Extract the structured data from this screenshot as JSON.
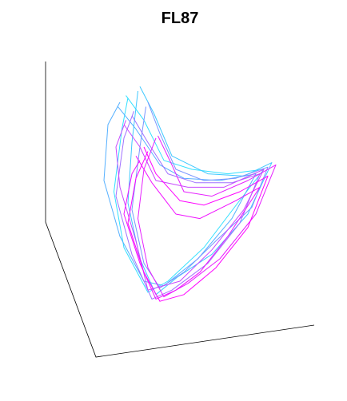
{
  "chart_data": {
    "type": "line",
    "title": "FL87",
    "xlim": [
      0,
      100
    ],
    "ylim": [
      0,
      100
    ],
    "series": [
      {
        "color": "#33e0ff",
        "x": [
          19,
          28,
          38,
          52,
          70,
          88,
          75,
          58,
          40,
          30,
          18,
          13,
          17,
          20
        ],
        "values": [
          93,
          82,
          64,
          60,
          58,
          60,
          45,
          25,
          10,
          5,
          25,
          50,
          78,
          92
        ]
      },
      {
        "color": "#3fc8ff",
        "x": [
          26,
          33,
          42,
          60,
          78,
          92,
          80,
          62,
          45,
          34,
          26,
          20,
          22,
          25
        ],
        "values": [
          97,
          85,
          66,
          58,
          57,
          63,
          40,
          22,
          12,
          4,
          20,
          45,
          72,
          95
        ]
      },
      {
        "color": "#55b0ff",
        "x": [
          15,
          24,
          36,
          48,
          66,
          84,
          72,
          55,
          38,
          28,
          16,
          8,
          10,
          16
        ],
        "values": [
          88,
          78,
          62,
          56,
          55,
          58,
          38,
          20,
          8,
          10,
          30,
          55,
          80,
          90
        ]
      },
      {
        "color": "#7a96ff",
        "x": [
          30,
          36,
          44,
          58,
          74,
          90,
          82,
          64,
          48,
          36,
          28,
          22,
          26,
          29
        ],
        "values": [
          90,
          76,
          60,
          55,
          56,
          61,
          43,
          28,
          14,
          7,
          18,
          42,
          70,
          88
        ]
      },
      {
        "color": "#a070ff",
        "x": [
          22,
          30,
          40,
          54,
          72,
          86,
          76,
          60,
          42,
          32,
          22,
          14,
          18,
          23
        ],
        "values": [
          84,
          72,
          58,
          54,
          54,
          58,
          36,
          18,
          6,
          2,
          22,
          48,
          74,
          86
        ]
      },
      {
        "color": "#c848ff",
        "x": [
          18,
          26,
          34,
          50,
          68,
          88,
          78,
          62,
          46,
          30,
          24,
          16,
          14,
          19
        ],
        "values": [
          80,
          70,
          55,
          52,
          52,
          60,
          42,
          24,
          10,
          6,
          28,
          52,
          70,
          82
        ]
      },
      {
        "color": "#e620ff",
        "x": [
          35,
          42,
          48,
          62,
          80,
          94,
          84,
          66,
          50,
          38,
          30,
          25,
          28,
          34
        ],
        "values": [
          75,
          62,
          50,
          48,
          55,
          62,
          40,
          20,
          9,
          3,
          16,
          38,
          60,
          74
        ]
      },
      {
        "color": "#ff00ff",
        "x": [
          28,
          34,
          46,
          58,
          76,
          90,
          80,
          64,
          48,
          36,
          28,
          20,
          24,
          30
        ],
        "values": [
          70,
          58,
          46,
          44,
          50,
          57,
          34,
          16,
          4,
          1,
          14,
          36,
          56,
          68
        ]
      },
      {
        "color": "#f010ff",
        "x": [
          24,
          32,
          44,
          56,
          74,
          86,
          70,
          56,
          44,
          34,
          26,
          18,
          22,
          26
        ],
        "values": [
          66,
          54,
          40,
          38,
          46,
          52,
          30,
          14,
          6,
          2,
          18,
          40,
          58,
          64
        ]
      }
    ]
  }
}
